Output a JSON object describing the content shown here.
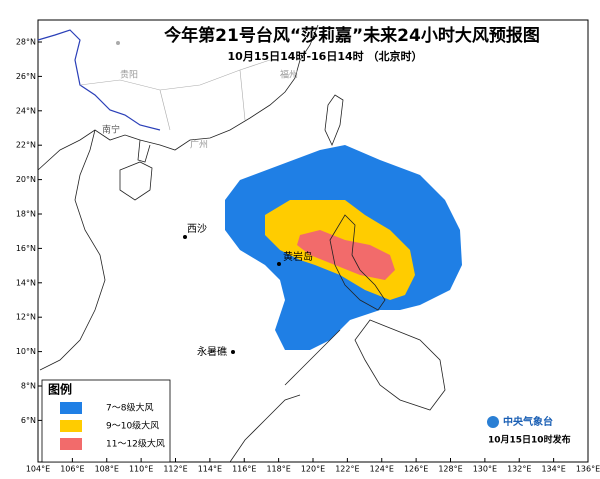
{
  "header": {
    "title": "今年第21号台风“莎莉嘉”未来24小时大风预报图",
    "subtitle": "10月15日14时-16日14时 （北京时）"
  },
  "lon_labels": [
    "104°E",
    "106°E",
    "108°E",
    "110°E",
    "112°E",
    "114°E",
    "116°E",
    "118°E",
    "120°E",
    "122°E",
    "124°E",
    "126°E",
    "128°E",
    "130°E",
    "132°E",
    "134°E",
    "136°E"
  ],
  "lat_labels": [
    "28°N",
    "26°N",
    "24°N",
    "22°N",
    "20°N",
    "18°N",
    "16°N",
    "14°N",
    "12°N",
    "10°N",
    "8°N",
    "6°N"
  ],
  "places": [
    {
      "name": "贵阳"
    },
    {
      "name": "南宁"
    },
    {
      "name": "福州"
    },
    {
      "name": "广州"
    },
    {
      "name": "西沙"
    },
    {
      "name": "黄岩岛"
    },
    {
      "name": "永暑礁"
    }
  ],
  "legend": {
    "title": "图例",
    "items": [
      {
        "label": "7～8级大风",
        "color": "#1f7fe5"
      },
      {
        "label": "9～10级大风",
        "color": "#ffcc00"
      },
      {
        "label": "11～12级大风",
        "color": "#f26b6b"
      }
    ]
  },
  "footer": {
    "agency": "中央气象台",
    "issued": "10月15日10时发布"
  }
}
